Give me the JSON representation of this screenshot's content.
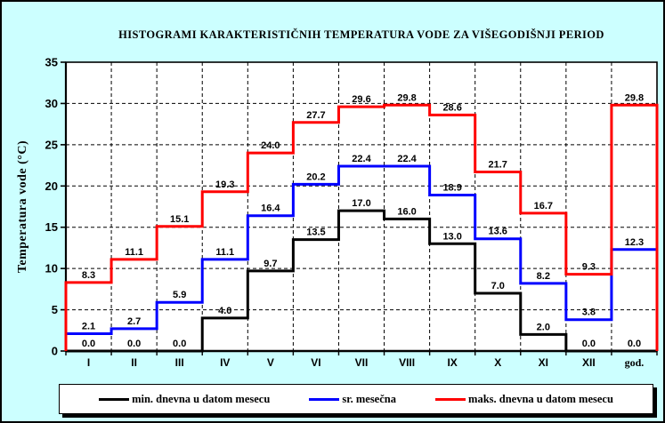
{
  "title": "HISTOGRAMI KARAKTERISTIČNIH TEMPERATURA VODE ZA VIŠEGODIŠNJI PERIOD",
  "colors": {
    "background": "#CCFFFF",
    "plot_background": "#FFFFFF",
    "axis": "#000000",
    "min_series": "#000000",
    "avg_series": "#0000FF",
    "max_series": "#FF0000"
  },
  "chart_data": {
    "type": "line",
    "subtype": "step-histogram",
    "title": "HISTOGRAMI KARAKTERISTIČNIH TEMPERATURA VODE ZA VIŠEGODIŠNJI PERIOD",
    "xlabel": "",
    "ylabel": "Temperatura vode (°C)",
    "ylim": [
      0,
      35
    ],
    "yticks": [
      0,
      5,
      10,
      15,
      20,
      25,
      30,
      35
    ],
    "grid": true,
    "legend_position": "bottom",
    "categories": [
      "I",
      "II",
      "III",
      "IV",
      "V",
      "VI",
      "VII",
      "VIII",
      "IX",
      "X",
      "XI",
      "XII",
      "god."
    ],
    "series": [
      {
        "name": "min. dnevna u datom mesecu",
        "color": "#000000",
        "closed_right": false,
        "values": [
          0.0,
          0.0,
          0.0,
          4.0,
          9.7,
          13.5,
          17.0,
          16.0,
          13.0,
          7.0,
          2.0,
          0.0,
          0.0
        ]
      },
      {
        "name": "sr. mesečna",
        "color": "#0000FF",
        "closed_right": false,
        "values": [
          2.1,
          2.7,
          5.9,
          11.1,
          16.4,
          20.2,
          22.4,
          22.4,
          18.9,
          13.6,
          8.2,
          3.8,
          12.3
        ]
      },
      {
        "name": "maks. dnevna u datom mesecu",
        "color": "#FF0000",
        "closed_right": true,
        "values": [
          8.3,
          11.1,
          15.1,
          19.3,
          24.0,
          27.7,
          29.6,
          29.8,
          28.6,
          21.7,
          16.7,
          9.3,
          29.8
        ]
      }
    ]
  }
}
